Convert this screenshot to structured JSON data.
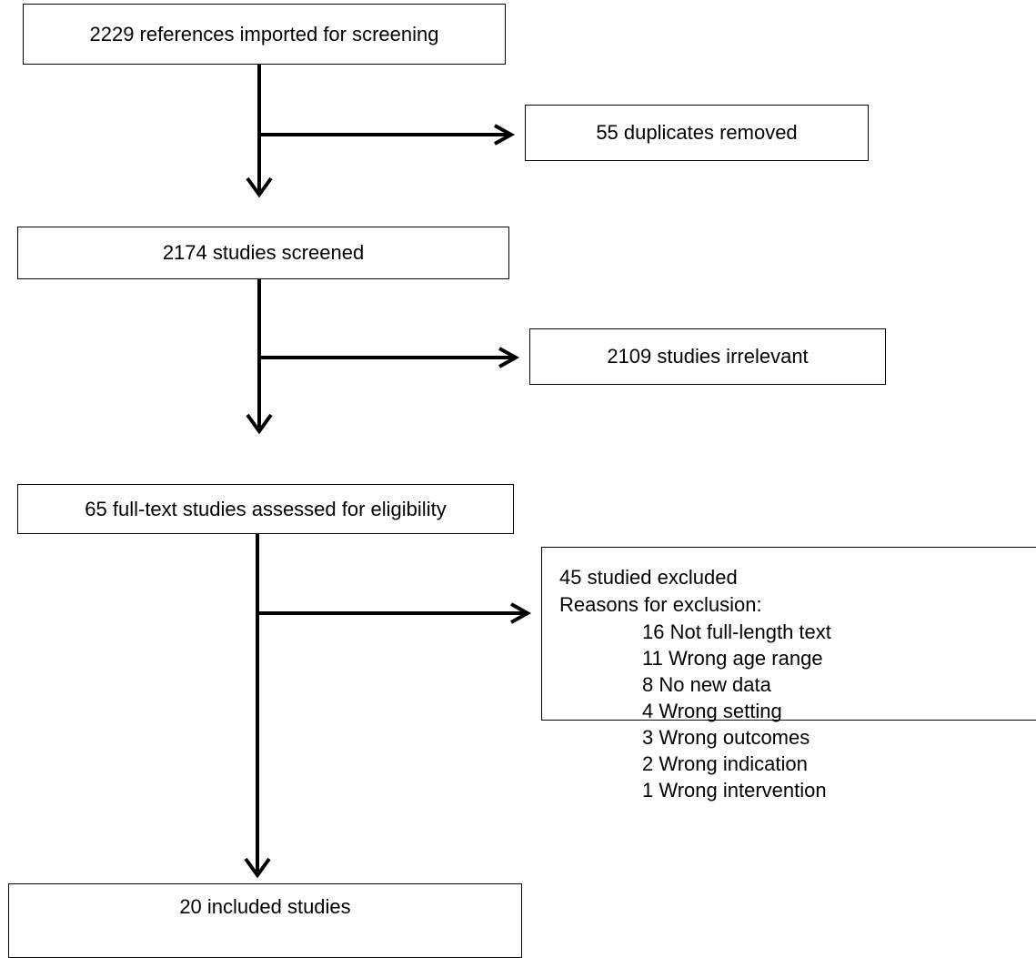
{
  "flow": {
    "references": "2229 references imported for screening",
    "duplicates": "55 duplicates removed",
    "screened": "2174 studies screened",
    "irrelevant": "2109 studies irrelevant",
    "fulltext": "65 full-text studies assessed for eligibility",
    "excluded": {
      "title": "45 studied excluded",
      "subtitle": "Reasons for exclusion:",
      "reasons": [
        "16 Not full-length text",
        "11 Wrong age range",
        "8 No new data",
        "4 Wrong setting",
        "3 Wrong outcomes",
        "2 Wrong indication",
        "1 Wrong intervention"
      ]
    },
    "included": "20 included studies"
  }
}
